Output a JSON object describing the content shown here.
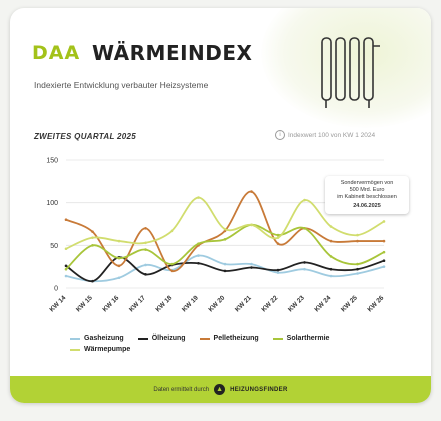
{
  "header": {
    "logo": "DAA",
    "title": "WÄRMEINDEX",
    "subtitle": "Indexierte Entwicklung verbauter Heizsysteme",
    "section": "ZWEITES QUARTAL 2025",
    "info": "Indexwert 100 von KW 1 2024"
  },
  "annotation": {
    "text_lines": [
      "Sondervermögen von",
      "500 Mrd. Euro",
      "im Kabinett beschlossen"
    ],
    "date": "24.06.2025"
  },
  "footer": {
    "text": "Daten ermittelt durch",
    "brand": "HEIZUNGSFINDER"
  },
  "chart_data": {
    "type": "line",
    "x": [
      "KW 14",
      "KW 15",
      "KW 16",
      "KW 17",
      "KW 18",
      "KW 19",
      "KW 20",
      "KW 21",
      "KW 22",
      "KW 23",
      "KW 24",
      "KW 25",
      "KW 26"
    ],
    "ylim": [
      0,
      150
    ],
    "yticks": [
      0,
      50,
      100,
      150
    ],
    "series": [
      {
        "name": "Gasheizung",
        "color": "#9fcbe0",
        "values": [
          14,
          8,
          12,
          27,
          21,
          38,
          28,
          28,
          18,
          22,
          14,
          17,
          25
        ]
      },
      {
        "name": "Ölheizung",
        "color": "#222222",
        "values": [
          26,
          8,
          36,
          16,
          27,
          29,
          20,
          24,
          21,
          30,
          22,
          22,
          32
        ]
      },
      {
        "name": "Pelletheizung",
        "color": "#c87a38",
        "values": [
          80,
          66,
          26,
          70,
          20,
          50,
          67,
          113,
          52,
          70,
          55,
          55,
          55
        ]
      },
      {
        "name": "Solarthermie",
        "color": "#a8c53a",
        "values": [
          22,
          50,
          35,
          45,
          28,
          52,
          57,
          74,
          62,
          70,
          37,
          28,
          42
        ]
      },
      {
        "name": "Wärmepumpe",
        "color": "#d1dd6e",
        "values": [
          46,
          59,
          55,
          53,
          67,
          106,
          69,
          74,
          59,
          103,
          72,
          62,
          78
        ]
      }
    ]
  }
}
